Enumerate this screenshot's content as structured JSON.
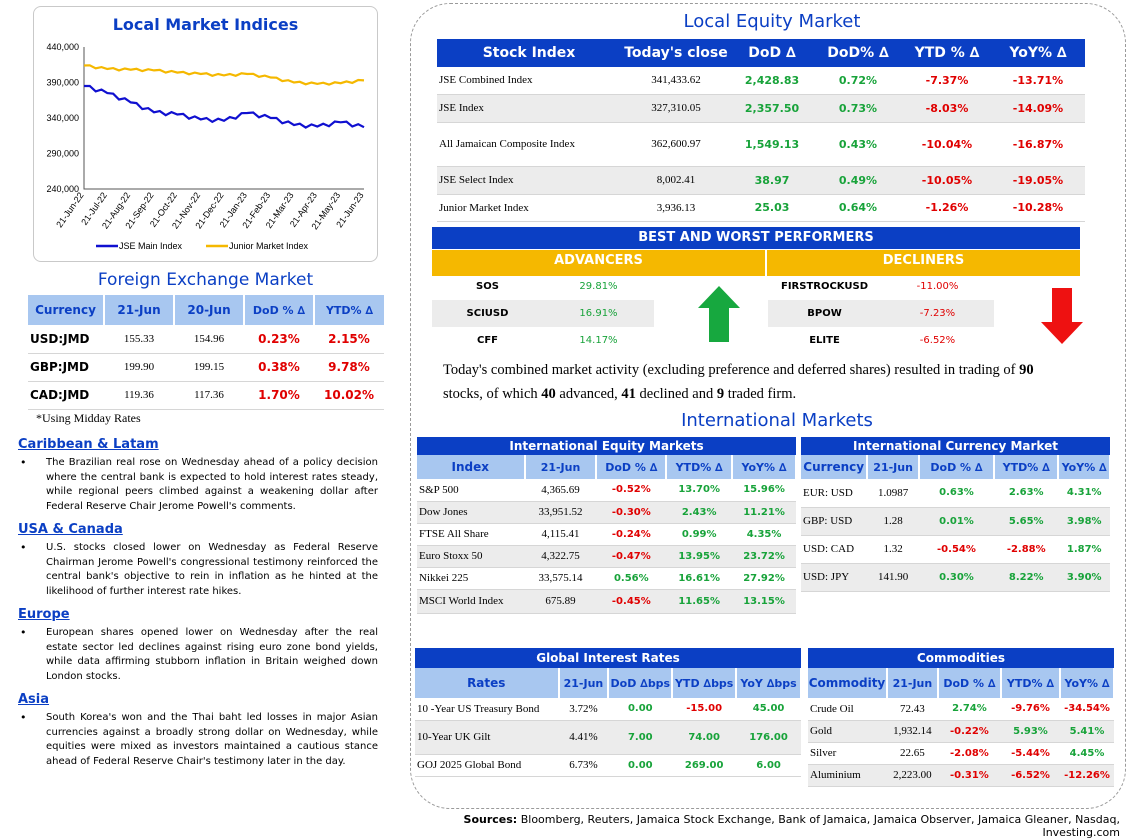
{
  "left": {
    "chart": {
      "title": "Local Market Indices",
      "chart_data": {
        "type": "line",
        "title": "Local Market Indices",
        "x": [
          "21-Jun-22",
          "21-Jul-22",
          "21-Aug-22",
          "21-Sep-22",
          "21-Oct-22",
          "21-Nov-22",
          "21-Dec-22",
          "21-Jan-23",
          "21-Feb-23",
          "21-Mar-23",
          "21-Apr-23",
          "21-May-23",
          "21-Jun-23"
        ],
        "yticks": [
          "440,000",
          "390,000",
          "340,000",
          "290,000",
          "240,000"
        ],
        "ylim": [
          240000,
          440000
        ],
        "series": [
          {
            "name": "JSE Main Index",
            "color": "#1010d0",
            "values": [
              385000,
              375000,
              362000,
              348000,
              345000,
              338000,
              336000,
              347000,
              340000,
              330000,
              328000,
              334000,
              327000
            ]
          },
          {
            "name": "Junior Market Index",
            "color": "#f5b800",
            "values": [
              414000,
              409000,
              408000,
              407000,
              404000,
              402000,
              400000,
              402000,
              397000,
              390000,
              388000,
              389000,
              393000
            ]
          }
        ],
        "legend": "bottom"
      }
    },
    "fx": {
      "title": "Foreign Exchange Market",
      "headers": [
        "Currency",
        "21-Jun",
        "20-Jun",
        "DoD % ∆",
        "YTD% ∆"
      ],
      "rows": [
        {
          "cur": "USD:JMD",
          "a": "155.33",
          "b": "154.96",
          "dod": "0.23%",
          "ytd": "2.15%"
        },
        {
          "cur": "GBP:JMD",
          "a": "199.90",
          "b": "199.15",
          "dod": "0.38%",
          "ytd": "9.78%"
        },
        {
          "cur": "CAD:JMD",
          "a": "119.36",
          "b": "117.36",
          "dod": "1.70%",
          "ytd": "10.02%"
        }
      ],
      "note": "*Using Midday Rates"
    },
    "news": [
      {
        "h": "Caribbean & Latam",
        "p": "The Brazilian real rose on Wednesday ahead of a policy decision where the central bank is expected to hold interest rates steady, while regional peers climbed against a weakening dollar after Federal Reserve Chair Jerome Powell's comments."
      },
      {
        "h": "USA & Canada",
        "p": "U.S. stocks closed lower on Wednesday as Federal Reserve Chairman Jerome Powell's congressional testimony reinforced the central bank's objective to rein in inflation as he hinted at the likelihood of further interest rate hikes."
      },
      {
        "h": "Europe",
        "p": "European shares opened lower on Wednesday after the real estate sector led declines against rising euro zone bond yields, while data affirming stubborn inflation in Britain weighed down London stocks."
      },
      {
        "h": "Asia",
        "p": "South Korea's won and the Thai baht led losses in major Asian currencies against a broadly strong dollar on Wednesday, while equities were mixed as investors maintained a cautious stance ahead of Federal Reserve Chair's testimony later in the day."
      }
    ]
  },
  "equity": {
    "title": "Local Equity Market",
    "headers": [
      "Stock Index",
      "Today's close",
      "DoD  ∆",
      "DoD% ∆",
      "YTD % ∆",
      "YoY% ∆"
    ],
    "rows": [
      {
        "name": "JSE Combined Index",
        "close": "341,433.62",
        "dod": "2,428.83",
        "dodp": "0.72%",
        "ytd": "-7.37%",
        "yoy": "-13.71%"
      },
      {
        "name": "JSE Index",
        "close": "327,310.05",
        "dod": "2,357.50",
        "dodp": "0.73%",
        "ytd": "-8.03%",
        "yoy": "-14.09%"
      },
      {
        "name": "All Jamaican Composite Index",
        "close": "362,600.97",
        "dod": "1,549.13",
        "dodp": "0.43%",
        "ytd": "-10.04%",
        "yoy": "-16.87%"
      },
      {
        "name": "JSE Select Index",
        "close": "8,002.41",
        "dod": "38.97",
        "dodp": "0.49%",
        "ytd": "-10.05%",
        "yoy": "-19.05%"
      },
      {
        "name": "Junior Market Index",
        "close": "3,936.13",
        "dod": "25.03",
        "dodp": "0.64%",
        "ytd": "-1.26%",
        "yoy": "-10.28%"
      }
    ]
  },
  "bw": {
    "title": "BEST AND WORST PERFORMERS",
    "adv_label": "ADVANCERS",
    "dec_label": "DECLINERS",
    "advancers": [
      {
        "sym": "SOS",
        "pct": "29.81%"
      },
      {
        "sym": "SCIUSD",
        "pct": "16.91%"
      },
      {
        "sym": "CFF",
        "pct": "14.17%"
      }
    ],
    "decliners": [
      {
        "sym": "FIRSTROCKUSD",
        "pct": "-11.00%"
      },
      {
        "sym": "BPOW",
        "pct": "-7.23%"
      },
      {
        "sym": "ELITE",
        "pct": "-6.52%"
      }
    ]
  },
  "summary": {
    "t1": "Today's combined market activity (excluding preference and deferred shares) resulted in trading of ",
    "n1": "90",
    "t2": "stocks, of which ",
    "n2": "40",
    "t3": " advanced, ",
    "n3": "41",
    "t4": " declined and ",
    "n4": "9",
    "t5": " traded firm."
  },
  "intl": {
    "title": "International Markets",
    "equity": {
      "title": "International Equity Markets",
      "headers": [
        "Index",
        "21-Jun",
        "DoD % ∆",
        "YTD% ∆",
        "YoY% ∆"
      ],
      "rows": [
        {
          "n": "S&P 500",
          "v": "4,365.69",
          "dod": "-0.52%",
          "ytd": "13.70%",
          "yoy": "15.96%"
        },
        {
          "n": "Dow Jones",
          "v": "33,951.52",
          "dod": "-0.30%",
          "ytd": "2.43%",
          "yoy": "11.21%"
        },
        {
          "n": "FTSE All Share",
          "v": "4,115.41",
          "dod": "-0.24%",
          "ytd": "0.99%",
          "yoy": "4.35%"
        },
        {
          "n": "Euro Stoxx 50",
          "v": "4,322.75",
          "dod": "-0.47%",
          "ytd": "13.95%",
          "yoy": "23.72%"
        },
        {
          "n": "Nikkei 225",
          "v": "33,575.14",
          "dod": "0.56%",
          "ytd": "16.61%",
          "yoy": "27.92%"
        },
        {
          "n": "MSCI World Index",
          "v": "675.89",
          "dod": "-0.45%",
          "ytd": "11.65%",
          "yoy": "13.15%"
        }
      ]
    },
    "currency": {
      "title": "International Currency Market",
      "headers": [
        "Currency",
        "21-Jun",
        "DoD % ∆",
        "YTD% ∆",
        "YoY% ∆"
      ],
      "rows": [
        {
          "n": "EUR: USD",
          "v": "1.0987",
          "dod": "0.63%",
          "ytd": "2.63%",
          "yoy": "4.31%"
        },
        {
          "n": "GBP: USD",
          "v": "1.28",
          "dod": "0.01%",
          "ytd": "5.65%",
          "yoy": "3.98%"
        },
        {
          "n": "USD: CAD",
          "v": "1.32",
          "dod": "-0.54%",
          "ytd": "-2.88%",
          "yoy": "1.87%"
        },
        {
          "n": "USD: JPY",
          "v": "141.90",
          "dod": "0.30%",
          "ytd": "8.22%",
          "yoy": "3.90%"
        }
      ]
    },
    "rates": {
      "title": "Global Interest Rates",
      "headers": [
        "Rates",
        "21-Jun",
        "DoD ∆bps",
        "YTD ∆bps",
        "YoY ∆bps"
      ],
      "rows": [
        {
          "n": "10 -Year US Treasury Bond",
          "v": "3.72%",
          "dod": "0.00",
          "ytd": "-15.00",
          "yoy": "45.00"
        },
        {
          "n": "10-Year UK Gilt",
          "v": "4.41%",
          "dod": "7.00",
          "ytd": "74.00",
          "yoy": "176.00"
        },
        {
          "n": "GOJ 2025 Global Bond",
          "v": "6.73%",
          "dod": "0.00",
          "ytd": "269.00",
          "yoy": "6.00"
        }
      ]
    },
    "commodities": {
      "title": "Commodities",
      "headers": [
        "Commodity",
        "21-Jun",
        "DoD % ∆",
        "YTD% ∆",
        "YoY% ∆"
      ],
      "rows": [
        {
          "n": "Crude Oil",
          "v": "72.43",
          "dod": "2.74%",
          "ytd": "-9.76%",
          "yoy": "-34.54%"
        },
        {
          "n": "Gold",
          "v": "1,932.14",
          "dod": "-0.22%",
          "ytd": "5.93%",
          "yoy": "5.41%"
        },
        {
          "n": "Silver",
          "v": "22.65",
          "dod": "-2.08%",
          "ytd": "-5.44%",
          "yoy": "4.45%"
        },
        {
          "n": "Aluminium",
          "v": "2,223.00",
          "dod": "-0.31%",
          "ytd": "-6.52%",
          "yoy": "-12.26%"
        }
      ]
    }
  },
  "sources": {
    "label": "Sources:",
    "text": " Bloomberg, Reuters, Jamaica Stock Exchange, Bank of Jamaica, Jamaica Observer, Jamaica Gleaner, Nasdaq, Investing.com"
  },
  "colors": {
    "blue": "#0b3fc4",
    "light_blue": "#a8c7f0",
    "gold": "#f5b800",
    "green": "#18a33a",
    "red": "#e00000"
  }
}
